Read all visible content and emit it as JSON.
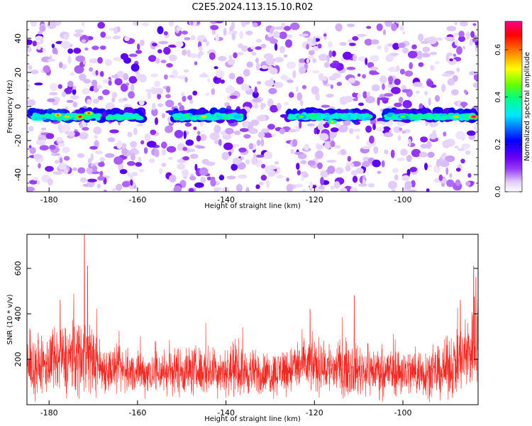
{
  "title": "C2E5.2024.113.15.10.R02",
  "chart_data": [
    {
      "type": "heatmap",
      "xlabel": "Height of straight line (km)",
      "ylabel": "Frequency (Hz)",
      "xlim": [
        -185,
        -83
      ],
      "ylim": [
        -50,
        50
      ],
      "xticks": [
        -180,
        -160,
        -140,
        -120,
        -100
      ],
      "yticks": [
        -40,
        -20,
        0,
        20,
        40
      ],
      "colorbar": {
        "label": "Normalized spectral amplitude",
        "range": [
          0.0,
          0.72
        ],
        "ticks": [
          0.0,
          0.2,
          0.4,
          0.6
        ],
        "colormap": [
          "#ffffff",
          "#e0c8f8",
          "#9a40f8",
          "#6a00f0",
          "#0000ff",
          "#00e8ff",
          "#00ff80",
          "#66ff00",
          "#ffff00",
          "#ff8000",
          "#ff0000",
          "#ff0088"
        ]
      },
      "signal_band_hz": -5,
      "signal_segments_km": [
        [
          -184,
          -168
        ],
        [
          -167,
          -159
        ],
        [
          -152,
          -136
        ],
        [
          -126,
          -107
        ],
        [
          -104,
          -83
        ]
      ],
      "hotspots": [
        {
          "x": -178,
          "y": -5,
          "value": 0.6
        },
        {
          "x": -176,
          "y": -6,
          "value": 0.55
        },
        {
          "x": -173,
          "y": -6,
          "value": 0.68
        },
        {
          "x": -171,
          "y": -4,
          "value": 0.62
        },
        {
          "x": -145,
          "y": -6,
          "value": 0.55
        },
        {
          "x": -123,
          "y": -6,
          "value": 0.45
        },
        {
          "x": -116,
          "y": -9,
          "value": 0.5
        },
        {
          "x": -100,
          "y": -6,
          "value": 0.45
        },
        {
          "x": -88,
          "y": -6,
          "value": 0.55
        },
        {
          "x": -84,
          "y": -6,
          "value": 0.72
        }
      ]
    },
    {
      "type": "line",
      "xlabel": "Height of straight line (km)",
      "ylabel": "SNR (10 * v/v)",
      "xlim": [
        -185,
        -83
      ],
      "ylim": [
        0,
        750
      ],
      "xticks": [
        -180,
        -160,
        -140,
        -120,
        -100
      ],
      "yticks": [
        200,
        400,
        600
      ],
      "color": "#ee2a24",
      "envelope": [
        {
          "x": -185,
          "base": 150,
          "spread": 80
        },
        {
          "x": -180,
          "base": 180,
          "spread": 100
        },
        {
          "x": -176,
          "base": 200,
          "spread": 120
        },
        {
          "x": -172,
          "base": 230,
          "spread": 140
        },
        {
          "x": -168,
          "base": 160,
          "spread": 80
        },
        {
          "x": -160,
          "base": 140,
          "spread": 70
        },
        {
          "x": -150,
          "base": 150,
          "spread": 80
        },
        {
          "x": -140,
          "base": 150,
          "spread": 80
        },
        {
          "x": -130,
          "base": 135,
          "spread": 70
        },
        {
          "x": -122,
          "base": 175,
          "spread": 90
        },
        {
          "x": -115,
          "base": 160,
          "spread": 90
        },
        {
          "x": -108,
          "base": 150,
          "spread": 80
        },
        {
          "x": -100,
          "base": 145,
          "spread": 80
        },
        {
          "x": -92,
          "base": 140,
          "spread": 80
        },
        {
          "x": -86,
          "base": 200,
          "spread": 120
        },
        {
          "x": -83,
          "base": 300,
          "spread": 180
        }
      ],
      "peaks": [
        {
          "x": -172,
          "y": 750
        },
        {
          "x": -171.3,
          "y": 610
        },
        {
          "x": -177.5,
          "y": 460
        },
        {
          "x": -121,
          "y": 420
        },
        {
          "x": -111,
          "y": 480
        },
        {
          "x": -87,
          "y": 460
        },
        {
          "x": -84,
          "y": 610
        },
        {
          "x": -83.5,
          "y": 560
        }
      ],
      "num_samples": 2400
    }
  ]
}
